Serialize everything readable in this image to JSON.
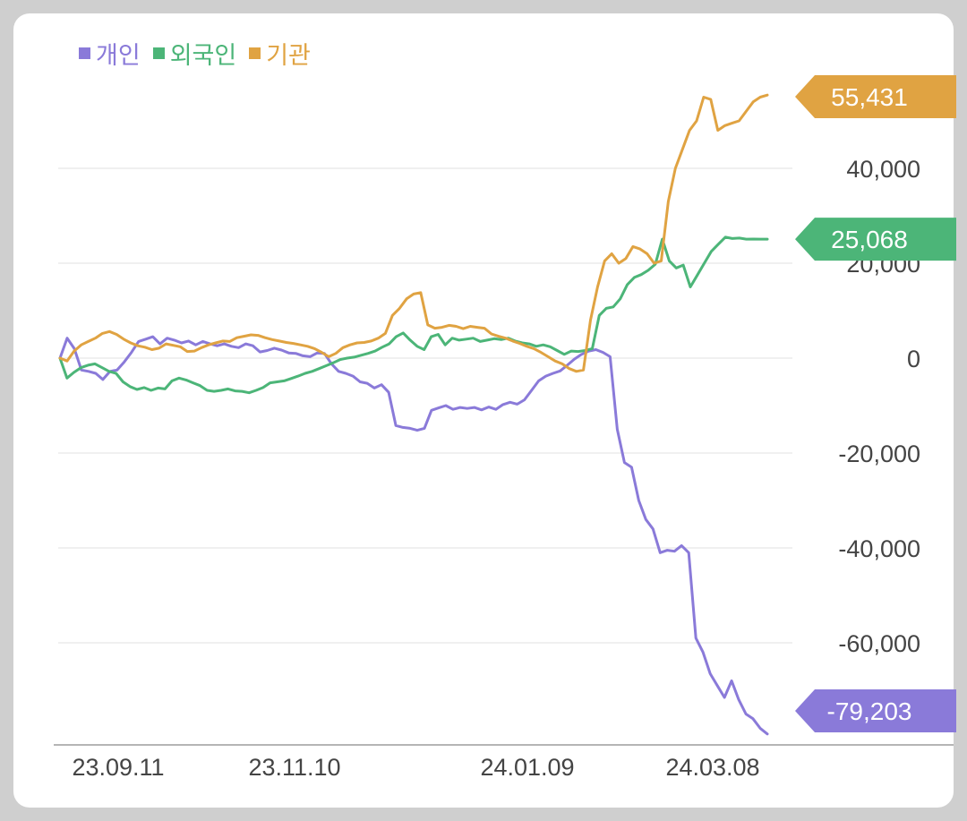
{
  "chart_data": {
    "type": "line",
    "xlabel": "",
    "ylabel": "",
    "ylim": [
      -81000,
      62000
    ],
    "grid": true,
    "legend_position": "top-left",
    "x_ticks": [
      "23.09.11",
      "23.11.10",
      "24.01.09",
      "24.03.08"
    ],
    "y_ticks": [
      {
        "value": 40000,
        "label": "40,000"
      },
      {
        "value": 20000,
        "label": "20,000"
      },
      {
        "value": 0,
        "label": "0"
      },
      {
        "value": -20000,
        "label": "-20,000"
      },
      {
        "value": -40000,
        "label": "-40,000"
      },
      {
        "value": -60000,
        "label": "-60,000"
      }
    ],
    "series": [
      {
        "name": "개인",
        "color": "#8a7ad9",
        "last_label": "-79,203",
        "values": [
          0,
          4200,
          2000,
          -2500,
          -2800,
          -3200,
          -4500,
          -2800,
          -2500,
          -800,
          1200,
          3500,
          4000,
          4500,
          3000,
          4200,
          3800,
          3200,
          3600,
          2800,
          3500,
          3000,
          2600,
          3000,
          2500,
          2200,
          3000,
          2600,
          1300,
          1600,
          2100,
          1700,
          1100,
          1000,
          500,
          300,
          1100,
          1000,
          -1200,
          -2800,
          -3200,
          -3800,
          -5000,
          -5300,
          -6300,
          -5600,
          -7200,
          -14200,
          -14600,
          -14800,
          -15200,
          -14800,
          -11000,
          -10500,
          -10000,
          -10800,
          -10400,
          -10600,
          -10400,
          -10900,
          -10300,
          -10800,
          -9800,
          -9300,
          -9700,
          -8800,
          -6800,
          -4800,
          -3800,
          -3200,
          -2700,
          -1500,
          -200,
          800,
          1500,
          1800,
          1200,
          300,
          -15000,
          -22000,
          -23000,
          -30000,
          -34000,
          -36000,
          -41000,
          -40500,
          -40700,
          -39500,
          -41000,
          -59000,
          -62000,
          -66500,
          -69000,
          -71500,
          -68000,
          -72000,
          -75000,
          -76000,
          -78000,
          -79203
        ]
      },
      {
        "name": "외국인",
        "color": "#4cb578",
        "last_label": "25,068",
        "values": [
          0,
          -4200,
          -3000,
          -2000,
          -1500,
          -1200,
          -2000,
          -2800,
          -3200,
          -5000,
          -6000,
          -6600,
          -6200,
          -6800,
          -6300,
          -6500,
          -4800,
          -4200,
          -4600,
          -5200,
          -5800,
          -6800,
          -7000,
          -6800,
          -6500,
          -6900,
          -7000,
          -7300,
          -6800,
          -6200,
          -5200,
          -5000,
          -4800,
          -4300,
          -3800,
          -3200,
          -2800,
          -2200,
          -1600,
          -1000,
          -300,
          0,
          200,
          600,
          1000,
          1500,
          2300,
          3000,
          4500,
          5300,
          3800,
          2500,
          1800,
          4500,
          5000,
          2800,
          4200,
          3800,
          4000,
          4200,
          3500,
          3800,
          4100,
          3900,
          4200,
          3600,
          3200,
          3000,
          2500,
          2800,
          2400,
          1600,
          800,
          1500,
          1400,
          1600,
          2000,
          9000,
          10500,
          10800,
          12500,
          15500,
          17000,
          17600,
          18500,
          19800,
          25068,
          20500,
          19000,
          19600,
          15000,
          17500,
          20000,
          22500,
          24000,
          25500,
          25200,
          25300,
          25068,
          25100,
          25068,
          25068
        ]
      },
      {
        "name": "기관",
        "color": "#e0a342",
        "last_label": "55,431",
        "values": [
          0,
          -600,
          1500,
          2800,
          3500,
          4200,
          5200,
          5600,
          5000,
          4000,
          3200,
          2600,
          2300,
          1800,
          2100,
          3000,
          2700,
          2400,
          1400,
          1500,
          2200,
          2800,
          3200,
          3600,
          3500,
          4300,
          4600,
          4900,
          4800,
          4300,
          3900,
          3600,
          3300,
          3100,
          2800,
          2500,
          2000,
          1200,
          300,
          1000,
          2200,
          2800,
          3200,
          3300,
          3600,
          4200,
          5200,
          9000,
          10500,
          12500,
          13500,
          13800,
          7000,
          6300,
          6500,
          6900,
          6700,
          6200,
          6700,
          6500,
          6300,
          5100,
          4600,
          4200,
          3600,
          3100,
          2500,
          2000,
          1200,
          300,
          -600,
          -1200,
          -2200,
          -2800,
          -2500,
          8000,
          15000,
          20500,
          22000,
          20000,
          21000,
          23500,
          23000,
          22000,
          20000,
          20500,
          33000,
          40000,
          44000,
          48000,
          50000,
          55000,
          54500,
          48000,
          49000,
          49500,
          50000,
          52000,
          54000,
          55000,
          55431
        ]
      }
    ]
  }
}
